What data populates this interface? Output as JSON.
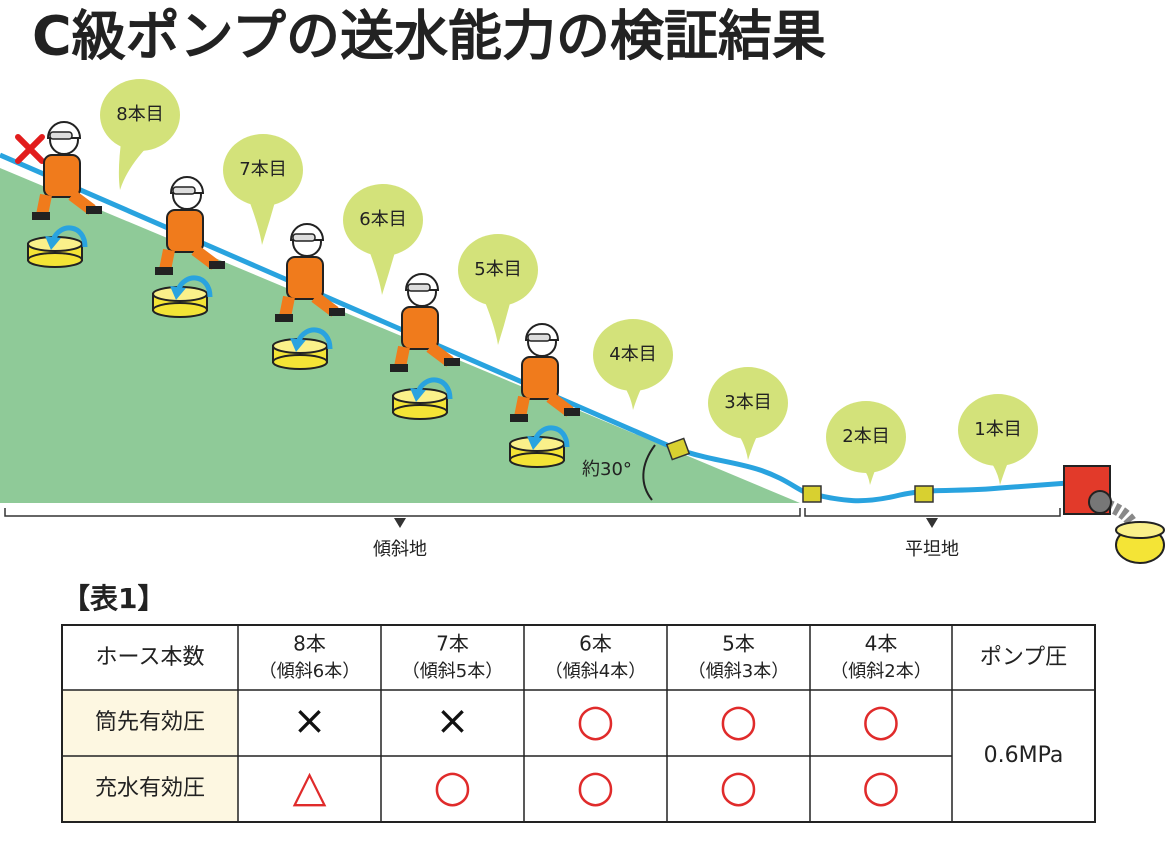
{
  "title": "C級ポンプの送水能力の検証結果",
  "diagram": {
    "hose_labels": [
      "8本目",
      "7本目",
      "6本目",
      "5本目",
      "4本目",
      "3本目",
      "2本目",
      "1本目"
    ],
    "angle_label": "約30°",
    "sections": [
      "傾斜地",
      "平坦地"
    ]
  },
  "table": {
    "caption": "【表1】",
    "header": [
      {
        "main": "ホース本数"
      },
      {
        "main": "8本",
        "sub": "（傾斜6本）"
      },
      {
        "main": "7本",
        "sub": "（傾斜5本）"
      },
      {
        "main": "6本",
        "sub": "（傾斜4本）"
      },
      {
        "main": "5本",
        "sub": "（傾斜3本）"
      },
      {
        "main": "4本",
        "sub": "（傾斜2本）"
      },
      {
        "main": "ポンプ圧"
      }
    ],
    "rows": [
      [
        "筒先有効圧",
        "×",
        "×",
        "○",
        "○",
        "○"
      ],
      [
        "充水有効圧",
        "△",
        "○",
        "○",
        "○",
        "○"
      ]
    ],
    "pump_pressure": "0.6MPa"
  }
}
